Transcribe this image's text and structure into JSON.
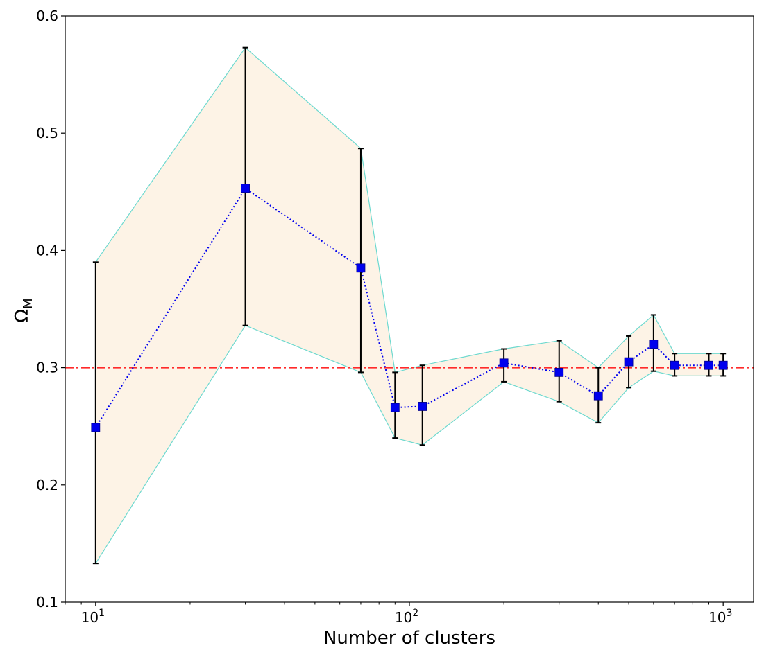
{
  "chart_data": {
    "type": "scatter",
    "title": "",
    "xlabel": "Number of clusters",
    "ylabel": "Ω",
    "ylabel_sub": "M",
    "xscale": "log",
    "xlim": [
      8.0,
      1250
    ],
    "ylim": [
      0.1,
      0.6
    ],
    "yticks": [
      0.1,
      0.2,
      0.3,
      0.4,
      0.5,
      0.6
    ],
    "yticklabels": [
      "0.1",
      "0.2",
      "0.3",
      "0.4",
      "0.5",
      "0.6"
    ],
    "xticks": [
      10,
      100,
      1000
    ],
    "xticklabels": [
      {
        "base": "10",
        "exp": "1"
      },
      {
        "base": "10",
        "exp": "2"
      },
      {
        "base": "10",
        "exp": "3"
      }
    ],
    "grid": false,
    "reference_line": {
      "y": 0.3,
      "style": "dash-dot",
      "color": "#ff2a2a"
    },
    "colors": {
      "marker": "#0000ee",
      "line": "#0000ee",
      "band_fill": "#fdf3e6",
      "band_edge": "#6dd9cf",
      "errorbar": "#000000"
    },
    "series": [
      {
        "x": [
          10,
          30,
          70,
          90,
          110,
          200,
          300,
          400,
          500,
          600,
          700,
          900,
          1000
        ],
        "y": [
          0.249,
          0.453,
          0.385,
          0.266,
          0.267,
          0.304,
          0.296,
          0.276,
          0.305,
          0.32,
          0.302,
          0.302,
          0.302
        ],
        "yerr_low": [
          0.133,
          0.336,
          0.296,
          0.24,
          0.234,
          0.288,
          0.271,
          0.253,
          0.283,
          0.297,
          0.293,
          0.293,
          0.293
        ],
        "yerr_high": [
          0.39,
          0.573,
          0.487,
          0.296,
          0.302,
          0.316,
          0.323,
          0.3,
          0.327,
          0.345,
          0.312,
          0.312,
          0.312
        ]
      }
    ]
  }
}
